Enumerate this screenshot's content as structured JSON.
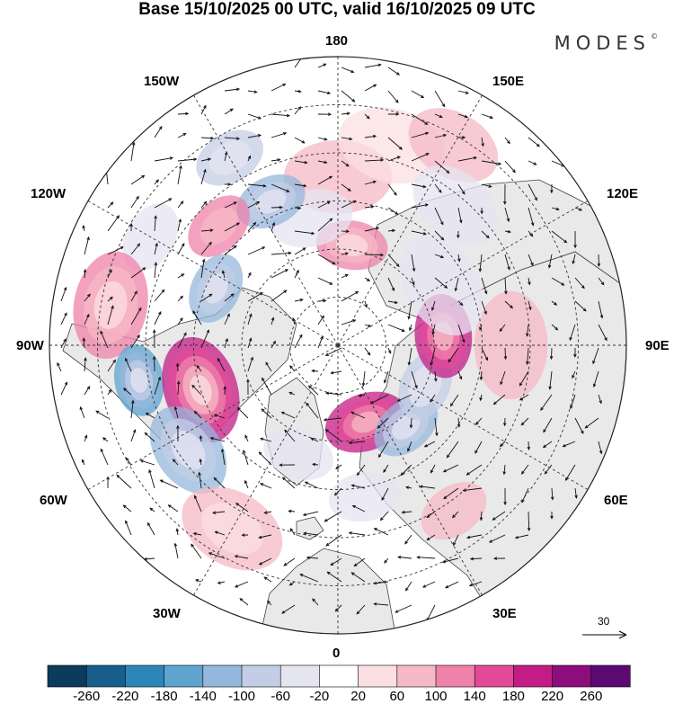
{
  "title": "Base 15/10/2025 00 UTC, valid 16/10/2025 09 UTC",
  "brand": "MODES",
  "brand_mark": "©",
  "longitude_labels": {
    "top": "180",
    "bottom": "0",
    "left": "90W",
    "right": "90E",
    "upper_left_inner": "150W",
    "upper_right_inner": "150E",
    "upper_left_outer": "120W",
    "upper_right_outer": "120E",
    "lower_left_outer": "60W",
    "lower_right_outer": "60E",
    "lower_left_inner": "30W",
    "lower_right_inner": "30E"
  },
  "reference_vector": {
    "label": "30"
  },
  "colorbar": {
    "labels": [
      "-260",
      "-220",
      "-180",
      "-140",
      "-100",
      "-60",
      "-20",
      "20",
      "60",
      "100",
      "140",
      "180",
      "220",
      "260"
    ],
    "colors": [
      "#0c3b5c",
      "#175f8a",
      "#2c86ba",
      "#5fa4cf",
      "#95b7dc",
      "#c3cde6",
      "#e5e4f1",
      "#ffffff",
      "#fbdfe2",
      "#f6b9c6",
      "#ee82aa",
      "#e24a98",
      "#c31c86",
      "#8d0d7d",
      "#5c0a72"
    ]
  },
  "map": {
    "projection": "north-polar-stereographic",
    "anomalies": [
      {
        "lon": 180,
        "colat": 35,
        "value": 60,
        "spread": 9
      },
      {
        "lon": 165,
        "colat": 43,
        "value": 40,
        "spread": 9
      },
      {
        "lon": 150,
        "colat": 48,
        "value": 60,
        "spread": 8
      },
      {
        "lon": 172,
        "colat": 21,
        "value": 120,
        "spread": 6
      },
      {
        "lon": -168,
        "colat": 27,
        "value": -60,
        "spread": 7
      },
      {
        "lon": -155,
        "colat": 33,
        "value": -140,
        "spread": 6
      },
      {
        "lon": -150,
        "colat": 45,
        "value": -100,
        "spread": 6
      },
      {
        "lon": -135,
        "colat": 35,
        "value": 100,
        "spread": 6
      },
      {
        "lon": -120,
        "colat": 45,
        "value": -60,
        "spread": 6
      },
      {
        "lon": -100,
        "colat": 48,
        "value": 120,
        "spread": 9
      },
      {
        "lon": -115,
        "colat": 28,
        "value": -120,
        "spread": 6
      },
      {
        "lon": -80,
        "colat": 42,
        "value": -180,
        "spread": 6
      },
      {
        "lon": -72,
        "colat": 30,
        "value": 200,
        "spread": 9
      },
      {
        "lon": -55,
        "colat": 38,
        "value": -120,
        "spread": 8
      },
      {
        "lon": -30,
        "colat": 44,
        "value": 80,
        "spread": 9
      },
      {
        "lon": -20,
        "colat": 24,
        "value": -60,
        "spread": 6
      },
      {
        "lon": 20,
        "colat": 17,
        "value": 180,
        "spread": 7
      },
      {
        "lon": 40,
        "colat": 22,
        "value": -120,
        "spread": 6
      },
      {
        "lon": 35,
        "colat": 42,
        "value": 60,
        "spread": 6
      },
      {
        "lon": 65,
        "colat": 20,
        "value": -100,
        "spread": 6
      },
      {
        "lon": 95,
        "colat": 22,
        "value": 180,
        "spread": 7
      },
      {
        "lon": 90,
        "colat": 36,
        "value": 60,
        "spread": 9
      },
      {
        "lon": 120,
        "colat": 25,
        "value": -60,
        "spread": 9
      },
      {
        "lon": 140,
        "colat": 38,
        "value": -60,
        "spread": 8
      },
      {
        "lon": 10,
        "colat": 32,
        "value": -60,
        "spread": 6
      }
    ]
  }
}
